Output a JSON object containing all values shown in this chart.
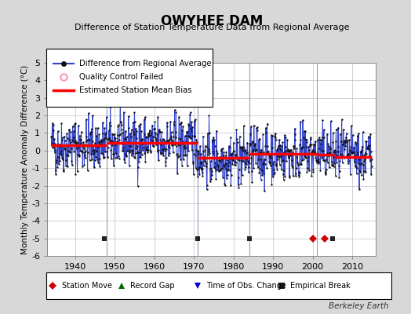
{
  "title": "OWYHEE DAM",
  "subtitle": "Difference of Station Temperature Data from Regional Average",
  "ylabel": "Monthly Temperature Anomaly Difference (°C)",
  "xlabel_years": [
    1940,
    1950,
    1960,
    1970,
    1980,
    1990,
    2000,
    2010
  ],
  "ylim": [
    -6,
    5
  ],
  "yticks": [
    -6,
    -5,
    -4,
    -3,
    -2,
    -1,
    0,
    1,
    2,
    3,
    4,
    5
  ],
  "xlim": [
    1933,
    2016
  ],
  "bg_color": "#d8d8d8",
  "plot_bg_color": "#ffffff",
  "line_color": "#3344cc",
  "dot_color": "#111111",
  "bias_color": "#ff0000",
  "grid_color": "#c0c0c0",
  "seed": 42,
  "start_year": 1934,
  "end_year": 2014,
  "bias_segments": [
    {
      "start": 1934.0,
      "end": 1948.0,
      "bias": 0.3
    },
    {
      "start": 1948.0,
      "end": 1971.0,
      "bias": 0.45
    },
    {
      "start": 1971.0,
      "end": 1984.0,
      "bias": -0.4
    },
    {
      "start": 1984.0,
      "end": 2001.0,
      "bias": -0.2
    },
    {
      "start": 2001.0,
      "end": 2005.5,
      "bias": -0.25
    },
    {
      "start": 2005.5,
      "end": 2015.0,
      "bias": -0.35
    }
  ],
  "vertical_lines": [
    1948,
    1971,
    1984,
    2001
  ],
  "vertical_line_color": "#9999bb",
  "event_markers_bottom": [
    {
      "year": 1947.5,
      "type": "empirical_break"
    },
    {
      "year": 1971.0,
      "type": "empirical_break"
    },
    {
      "year": 1984.0,
      "type": "empirical_break"
    },
    {
      "year": 2000.0,
      "type": "station_move"
    },
    {
      "year": 2003.0,
      "type": "station_move"
    },
    {
      "year": 2005.0,
      "type": "empirical_break"
    }
  ],
  "event_y": -5.0,
  "station_move_color": "#cc0000",
  "empirical_break_color": "#222222",
  "watermark": "Berkeley Earth",
  "noise_std": 1.0,
  "noise_trend": 0.0
}
